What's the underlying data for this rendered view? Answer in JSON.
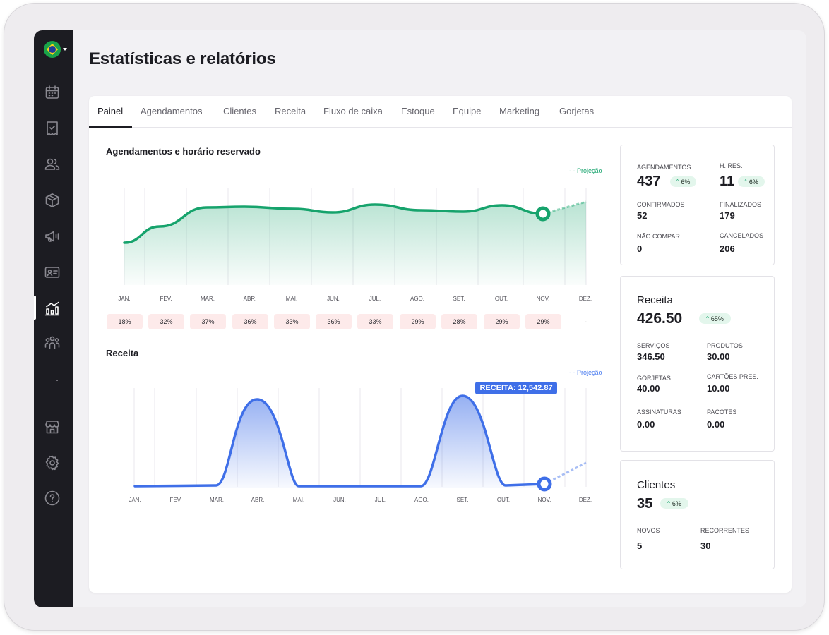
{
  "page_title": "Estatísticas e relatórios",
  "tabs": [
    {
      "label": "Painel"
    },
    {
      "label": "Agendamentos"
    },
    {
      "label": "Clientes"
    },
    {
      "label": "Receita"
    },
    {
      "label": "Fluxo de caixa"
    },
    {
      "label": "Estoque"
    },
    {
      "label": "Equipe"
    },
    {
      "label": "Marketing"
    },
    {
      "label": "Gorjetas"
    }
  ],
  "active_tab": "Painel",
  "sidebar": {
    "items": [
      {
        "icon": "calendar-icon"
      },
      {
        "icon": "receipt-icon"
      },
      {
        "icon": "clients-icon"
      },
      {
        "icon": "box-icon"
      },
      {
        "icon": "megaphone-icon"
      },
      {
        "icon": "id-card-icon"
      },
      {
        "icon": "statistics-icon"
      },
      {
        "icon": "team-icon"
      },
      {
        "icon": "store-icon"
      },
      {
        "icon": "settings-icon"
      },
      {
        "icon": "help-icon"
      }
    ],
    "active_item": "statistics-icon",
    "flag": "brazil-flag-icon"
  },
  "appointments_chart": {
    "title": "Agendamentos e horário reservado",
    "projection_label": "- - Projeção",
    "months": [
      "JAN.",
      "FEV.",
      "MAR.",
      "ABR.",
      "MAI.",
      "JUN.",
      "JUL.",
      "AGO.",
      "SET.",
      "OUT.",
      "NOV.",
      "DEZ."
    ],
    "occupancy": [
      "18%",
      "32%",
      "37%",
      "36%",
      "33%",
      "36%",
      "33%",
      "29%",
      "28%",
      "29%",
      "29%",
      "-"
    ],
    "color": "#16a36c"
  },
  "revenue_chart": {
    "title": "Receita",
    "projection_label": "- - Projeção",
    "months": [
      "JAN.",
      "FEV.",
      "MAR.",
      "ABR.",
      "MAI.",
      "JUN.",
      "JUL.",
      "AGO.",
      "SET.",
      "OUT.",
      "NOV.",
      "DEZ."
    ],
    "tooltip": "RECEITA: 12,542.87",
    "color": "#3f6fe8"
  },
  "stats_appointments": {
    "agendamentos": {
      "label": "AGENDAMENTOS",
      "value": "437",
      "badge": "6%"
    },
    "horas": {
      "label": "H. RES.",
      "value": "11",
      "badge": "6%"
    },
    "confirmados": {
      "label": "CONFIRMADOS",
      "value": "52"
    },
    "finalizados": {
      "label": "FINALIZADOS",
      "value": "179"
    },
    "nao_compar": {
      "label": "NÃO COMPAR.",
      "value": "0"
    },
    "cancelados": {
      "label": "CANCELADOS",
      "value": "206"
    }
  },
  "stats_revenue": {
    "title": "Receita",
    "value": "426.50",
    "badge": "65%",
    "servicos": {
      "label": "SERVIÇOS",
      "value": "346.50"
    },
    "produtos": {
      "label": "PRODUTOS",
      "value": "30.00"
    },
    "gorjetas": {
      "label": "GORJETAS",
      "value": "40.00"
    },
    "cartoes": {
      "label": "CARTÕES PRES.",
      "value": "10.00"
    },
    "assinaturas": {
      "label": "ASSINATURAS",
      "value": "0.00"
    },
    "pacotes": {
      "label": "PACOTES",
      "value": "0.00"
    }
  },
  "stats_clients": {
    "title": "Clientes",
    "value": "35",
    "badge": "6%",
    "novos": {
      "label": "NOVOS",
      "value": "5"
    },
    "recorrentes": {
      "label": "RECORRENTES",
      "value": "30"
    }
  }
}
